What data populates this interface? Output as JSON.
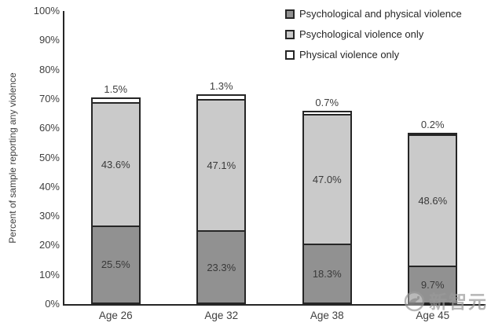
{
  "chart_data": {
    "type": "bar",
    "stacked": true,
    "title": "",
    "xlabel": "",
    "ylabel": "Percent of sample reporting any violence",
    "categories": [
      "Age 26",
      "Age 32",
      "Age 38",
      "Age 45"
    ],
    "series": [
      {
        "name": "Psychological and physical violence",
        "values": [
          25.5,
          23.3,
          18.3,
          9.7
        ],
        "labels": [
          "25.5%",
          "23.3%",
          "18.3%",
          "9.7%"
        ],
        "color": "#919191",
        "label_position": "inside"
      },
      {
        "name": "Psychological violence only",
        "values": [
          43.6,
          47.1,
          47.0,
          48.6
        ],
        "labels": [
          "43.6%",
          "47.1%",
          "47.0%",
          "48.6%"
        ],
        "color": "#cacaca",
        "label_position": "inside"
      },
      {
        "name": "Physical violence only",
        "values": [
          1.5,
          1.3,
          0.7,
          0.2
        ],
        "labels": [
          "1.5%",
          "1.3%",
          "0.7%",
          "0.2%"
        ],
        "color": "#ffffff",
        "label_position": "above"
      }
    ],
    "yticks": [
      "0%",
      "10%",
      "20%",
      "30%",
      "40%",
      "50%",
      "60%",
      "70%",
      "80%",
      "90%",
      "100%"
    ],
    "ylim": [
      0,
      100
    ],
    "grid": false,
    "legend_position": "top-right",
    "axis_color": "#262626",
    "label_color": "#3f3f3f"
  },
  "watermark": {
    "text": "新智元"
  }
}
